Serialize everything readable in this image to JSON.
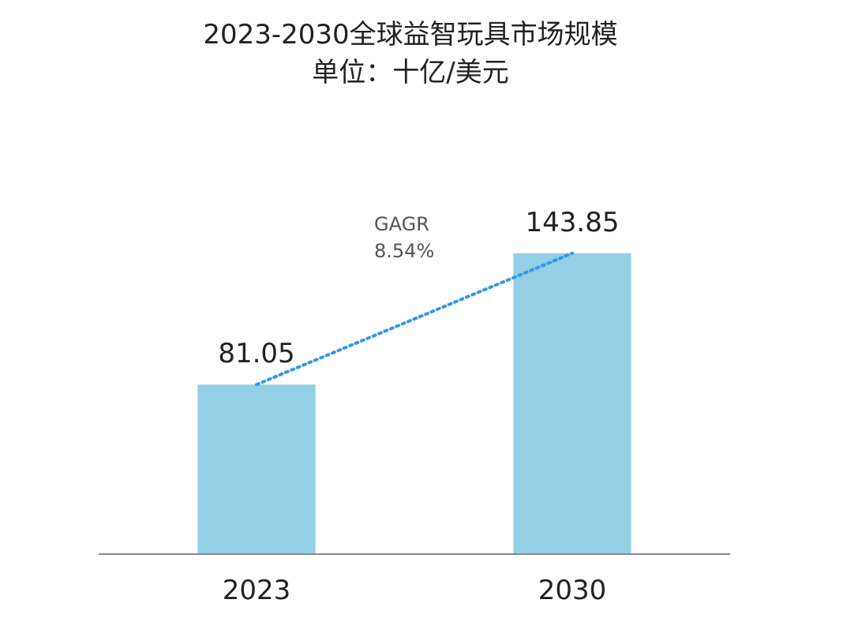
{
  "chart_data": {
    "type": "bar",
    "title": "2023-2030全球益智玩具市场规模",
    "subtitle": "单位：十亿/美元",
    "categories": [
      "2023",
      "2030"
    ],
    "values": [
      81.05,
      143.85
    ],
    "data_labels": [
      "81.05",
      "143.85"
    ],
    "annotation": {
      "label": "GAGR",
      "value": "8.54%"
    },
    "ylim": [
      0,
      170
    ],
    "grid": false,
    "legend": "none",
    "colors": {
      "bar": "#93cfe5",
      "trend_line": "#3399e6",
      "axis": "#888888"
    }
  }
}
